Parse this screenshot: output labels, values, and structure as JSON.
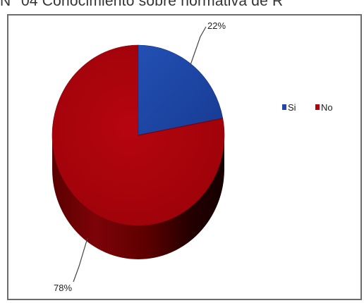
{
  "title": "N° 04 Conocimiento sobre normativa de R",
  "colors": {
    "si": "#1f48a8",
    "no": "#b0040a",
    "frame": "#6c6c6c"
  },
  "chart_data": {
    "type": "pie",
    "title": "N° 04 Conocimiento sobre normativa de R",
    "categories": [
      "Si",
      "No"
    ],
    "values": [
      22,
      78
    ],
    "data_labels": [
      "22%",
      "78%"
    ],
    "legend": {
      "placement": "right",
      "entries": [
        "Si",
        "No"
      ]
    },
    "style": "3d-pie"
  }
}
